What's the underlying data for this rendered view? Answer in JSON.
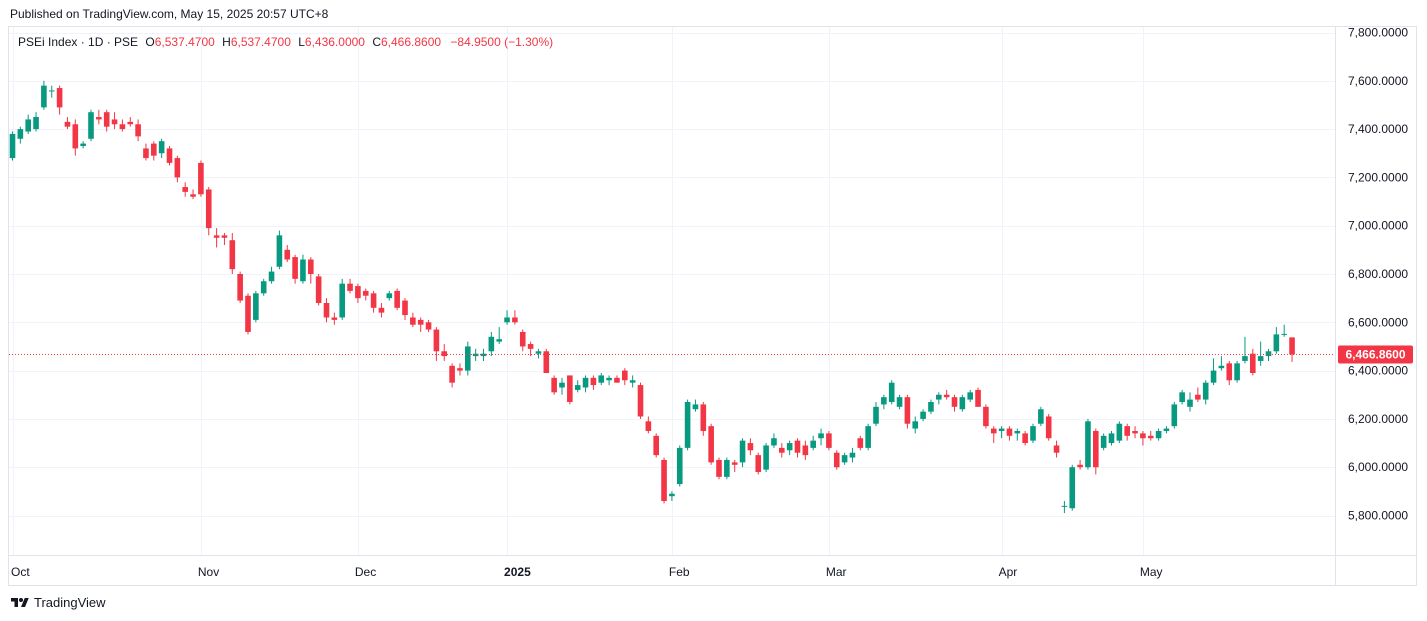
{
  "header": {
    "published": "Published on TradingView.com, May 15, 2025 20:57 UTC+8"
  },
  "legend": {
    "symbol": "PSEi Index · 1D · PSE",
    "o_label": "O",
    "o_value": "6,537.4700",
    "h_label": "H",
    "h_value": "6,537.4700",
    "l_label": "L",
    "l_value": "6,436.0000",
    "c_label": "C",
    "c_value": "6,466.8600",
    "change": "−84.9500 (−1.30%)"
  },
  "footer": {
    "brand": "TradingView",
    "logo_icon": "tradingview-logo-icon"
  },
  "colors": {
    "up": "#089981",
    "down": "#f23645",
    "grid": "#f0f3fa",
    "text": "#131722",
    "price_line": "#f23645"
  },
  "chart_data": {
    "type": "candlestick",
    "ylim": [
      5700,
      7800
    ],
    "y_ticks": [
      {
        "value": 5800,
        "label": "5,800.0000"
      },
      {
        "value": 6000,
        "label": "6,000.0000"
      },
      {
        "value": 6200,
        "label": "6,200.0000"
      },
      {
        "value": 6400,
        "label": "6,400.0000"
      },
      {
        "value": 6600,
        "label": "6,600.0000"
      },
      {
        "value": 6800,
        "label": "6,800.0000"
      },
      {
        "value": 7000,
        "label": "7,000.0000"
      },
      {
        "value": 7200,
        "label": "7,200.0000"
      },
      {
        "value": 7400,
        "label": "7,400.0000"
      },
      {
        "value": 7600,
        "label": "7,600.0000"
      },
      {
        "value": 7800,
        "label": "7,800.0000"
      }
    ],
    "x_ticks": [
      {
        "index": 0,
        "label": "Oct",
        "bold": false
      },
      {
        "index": 24,
        "label": "Nov",
        "bold": false
      },
      {
        "index": 44,
        "label": "Dec",
        "bold": false
      },
      {
        "index": 63,
        "label": "2025",
        "bold": true
      },
      {
        "index": 84,
        "label": "Feb",
        "bold": false
      },
      {
        "index": 104,
        "label": "Mar",
        "bold": false
      },
      {
        "index": 126,
        "label": "Apr",
        "bold": false
      },
      {
        "index": 144,
        "label": "May",
        "bold": false
      }
    ],
    "last_price": {
      "value": 6466.86,
      "label": "6,466.8600"
    },
    "candles": [
      [
        7280,
        7390,
        7270,
        7380
      ],
      [
        7360,
        7410,
        7340,
        7400
      ],
      [
        7390,
        7460,
        7380,
        7440
      ],
      [
        7400,
        7470,
        7390,
        7450
      ],
      [
        7490,
        7600,
        7480,
        7580
      ],
      [
        7560,
        7580,
        7530,
        7560
      ],
      [
        7570,
        7580,
        7460,
        7490
      ],
      [
        7430,
        7450,
        7400,
        7410
      ],
      [
        7420,
        7440,
        7290,
        7320
      ],
      [
        7330,
        7350,
        7320,
        7340
      ],
      [
        7360,
        7480,
        7350,
        7470
      ],
      [
        7450,
        7480,
        7420,
        7440
      ],
      [
        7470,
        7480,
        7390,
        7410
      ],
      [
        7440,
        7470,
        7400,
        7420
      ],
      [
        7420,
        7440,
        7390,
        7400
      ],
      [
        7430,
        7450,
        7410,
        7420
      ],
      [
        7420,
        7440,
        7350,
        7370
      ],
      [
        7320,
        7340,
        7270,
        7280
      ],
      [
        7340,
        7350,
        7270,
        7290
      ],
      [
        7300,
        7360,
        7280,
        7350
      ],
      [
        7320,
        7330,
        7250,
        7260
      ],
      [
        7280,
        7290,
        7180,
        7200
      ],
      [
        7160,
        7180,
        7120,
        7140
      ],
      [
        7130,
        7150,
        7110,
        7120
      ],
      [
        7260,
        7270,
        7120,
        7130
      ],
      [
        7150,
        7160,
        6960,
        6990
      ],
      [
        6960,
        6990,
        6910,
        6950
      ],
      [
        6960,
        6970,
        6920,
        6950
      ],
      [
        6940,
        6970,
        6800,
        6820
      ],
      [
        6800,
        6810,
        6680,
        6690
      ],
      [
        6710,
        6720,
        6550,
        6560
      ],
      [
        6610,
        6730,
        6600,
        6720
      ],
      [
        6720,
        6780,
        6710,
        6770
      ],
      [
        6770,
        6830,
        6760,
        6810
      ],
      [
        6830,
        6980,
        6820,
        6960
      ],
      [
        6900,
        6920,
        6850,
        6860
      ],
      [
        6870,
        6880,
        6760,
        6780
      ],
      [
        6770,
        6880,
        6760,
        6860
      ],
      [
        6860,
        6870,
        6760,
        6800
      ],
      [
        6790,
        6800,
        6670,
        6680
      ],
      [
        6680,
        6700,
        6600,
        6620
      ],
      [
        6620,
        6640,
        6590,
        6610
      ],
      [
        6620,
        6780,
        6610,
        6760
      ],
      [
        6760,
        6780,
        6720,
        6730
      ],
      [
        6750,
        6760,
        6680,
        6700
      ],
      [
        6730,
        6740,
        6690,
        6710
      ],
      [
        6720,
        6730,
        6640,
        6660
      ],
      [
        6660,
        6680,
        6620,
        6640
      ],
      [
        6700,
        6730,
        6690,
        6720
      ],
      [
        6730,
        6740,
        6650,
        6660
      ],
      [
        6690,
        6700,
        6610,
        6630
      ],
      [
        6620,
        6640,
        6580,
        6590
      ],
      [
        6610,
        6620,
        6560,
        6590
      ],
      [
        6600,
        6610,
        6560,
        6570
      ],
      [
        6570,
        6580,
        6440,
        6480
      ],
      [
        6480,
        6510,
        6440,
        6460
      ],
      [
        6420,
        6430,
        6330,
        6350
      ],
      [
        6410,
        6430,
        6380,
        6400
      ],
      [
        6400,
        6520,
        6380,
        6500
      ],
      [
        6460,
        6490,
        6440,
        6470
      ],
      [
        6460,
        6490,
        6440,
        6470
      ],
      [
        6480,
        6560,
        6460,
        6540
      ],
      [
        6520,
        6580,
        6510,
        6530
      ],
      [
        6600,
        6650,
        6590,
        6620
      ],
      [
        6620,
        6650,
        6590,
        6600
      ],
      [
        6560,
        6570,
        6480,
        6500
      ],
      [
        6510,
        6520,
        6460,
        6490
      ],
      [
        6470,
        6490,
        6450,
        6480
      ],
      [
        6480,
        6490,
        6390,
        6390
      ],
      [
        6370,
        6380,
        6300,
        6310
      ],
      [
        6330,
        6370,
        6300,
        6350
      ],
      [
        6380,
        6380,
        6260,
        6270
      ],
      [
        6320,
        6360,
        6310,
        6340
      ],
      [
        6330,
        6380,
        6310,
        6370
      ],
      [
        6370,
        6380,
        6320,
        6340
      ],
      [
        6350,
        6390,
        6340,
        6380
      ],
      [
        6360,
        6380,
        6340,
        6370
      ],
      [
        6370,
        6380,
        6350,
        6350
      ],
      [
        6400,
        6410,
        6340,
        6360
      ],
      [
        6350,
        6380,
        6330,
        6360
      ],
      [
        6340,
        6350,
        6200,
        6210
      ],
      [
        6190,
        6210,
        6140,
        6150
      ],
      [
        6130,
        6140,
        6040,
        6050
      ],
      [
        6030,
        6040,
        5850,
        5860
      ],
      [
        5880,
        5900,
        5860,
        5890
      ],
      [
        5930,
        6090,
        5920,
        6080
      ],
      [
        6080,
        6280,
        6070,
        6270
      ],
      [
        6240,
        6280,
        6230,
        6260
      ],
      [
        6260,
        6270,
        6130,
        6150
      ],
      [
        6170,
        6180,
        6010,
        6020
      ],
      [
        6030,
        6040,
        5950,
        5960
      ],
      [
        5960,
        6040,
        5950,
        6030
      ],
      [
        6020,
        6030,
        5980,
        6010
      ],
      [
        6020,
        6120,
        6000,
        6110
      ],
      [
        6100,
        6120,
        6050,
        6070
      ],
      [
        6050,
        6060,
        5970,
        5980
      ],
      [
        5990,
        6100,
        5980,
        6090
      ],
      [
        6090,
        6140,
        6080,
        6120
      ],
      [
        6080,
        6100,
        6040,
        6060
      ],
      [
        6070,
        6110,
        6050,
        6100
      ],
      [
        6110,
        6120,
        6040,
        6060
      ],
      [
        6090,
        6110,
        6030,
        6050
      ],
      [
        6080,
        6130,
        6070,
        6110
      ],
      [
        6120,
        6160,
        6090,
        6140
      ],
      [
        6140,
        6150,
        6070,
        6080
      ],
      [
        6060,
        6070,
        5990,
        6000
      ],
      [
        6020,
        6060,
        6010,
        6050
      ],
      [
        6040,
        6080,
        6020,
        6060
      ],
      [
        6120,
        6130,
        6070,
        6080
      ],
      [
        6080,
        6180,
        6070,
        6170
      ],
      [
        6180,
        6270,
        6170,
        6250
      ],
      [
        6260,
        6300,
        6240,
        6290
      ],
      [
        6270,
        6360,
        6260,
        6350
      ],
      [
        6250,
        6300,
        6240,
        6290
      ],
      [
        6290,
        6300,
        6160,
        6180
      ],
      [
        6160,
        6210,
        6140,
        6190
      ],
      [
        6200,
        6240,
        6190,
        6230
      ],
      [
        6230,
        6280,
        6220,
        6270
      ],
      [
        6280,
        6310,
        6260,
        6300
      ],
      [
        6300,
        6320,
        6280,
        6290
      ],
      [
        6290,
        6300,
        6230,
        6250
      ],
      [
        6240,
        6300,
        6230,
        6290
      ],
      [
        6280,
        6320,
        6270,
        6310
      ],
      [
        6320,
        6330,
        6250,
        6250
      ],
      [
        6250,
        6260,
        6160,
        6170
      ],
      [
        6160,
        6170,
        6100,
        6140
      ],
      [
        6150,
        6170,
        6120,
        6160
      ],
      [
        6160,
        6170,
        6110,
        6130
      ],
      [
        6140,
        6160,
        6110,
        6150
      ],
      [
        6140,
        6150,
        6090,
        6100
      ],
      [
        6110,
        6180,
        6100,
        6170
      ],
      [
        6180,
        6250,
        6170,
        6240
      ],
      [
        6210,
        6220,
        6110,
        6120
      ],
      [
        6090,
        6110,
        6040,
        6060
      ],
      [
        5840,
        5860,
        5810,
        5840
      ],
      [
        5830,
        6010,
        5820,
        6000
      ],
      [
        6010,
        6030,
        5990,
        6000
      ],
      [
        6000,
        6200,
        5990,
        6190
      ],
      [
        6150,
        6160,
        5970,
        6000
      ],
      [
        6080,
        6140,
        6070,
        6130
      ],
      [
        6100,
        6150,
        6090,
        6140
      ],
      [
        6110,
        6190,
        6100,
        6180
      ],
      [
        6170,
        6180,
        6110,
        6130
      ],
      [
        6150,
        6170,
        6120,
        6140
      ],
      [
        6140,
        6150,
        6090,
        6120
      ],
      [
        6130,
        6150,
        6110,
        6120
      ],
      [
        6120,
        6160,
        6110,
        6150
      ],
      [
        6150,
        6170,
        6140,
        6160
      ],
      [
        6170,
        6270,
        6160,
        6260
      ],
      [
        6270,
        6320,
        6260,
        6310
      ],
      [
        6250,
        6310,
        6230,
        6280
      ],
      [
        6300,
        6330,
        6270,
        6280
      ],
      [
        6280,
        6360,
        6260,
        6350
      ],
      [
        6350,
        6450,
        6340,
        6400
      ],
      [
        6410,
        6460,
        6400,
        6420
      ],
      [
        6430,
        6440,
        6340,
        6360
      ],
      [
        6360,
        6440,
        6350,
        6430
      ],
      [
        6440,
        6540,
        6430,
        6460
      ],
      [
        6470,
        6490,
        6380,
        6390
      ],
      [
        6440,
        6520,
        6420,
        6460
      ],
      [
        6460,
        6490,
        6440,
        6480
      ],
      [
        6480,
        6580,
        6470,
        6550
      ],
      [
        6550,
        6590,
        6540,
        6552
      ],
      [
        6537.47,
        6537.47,
        6436,
        6466.86
      ]
    ]
  }
}
